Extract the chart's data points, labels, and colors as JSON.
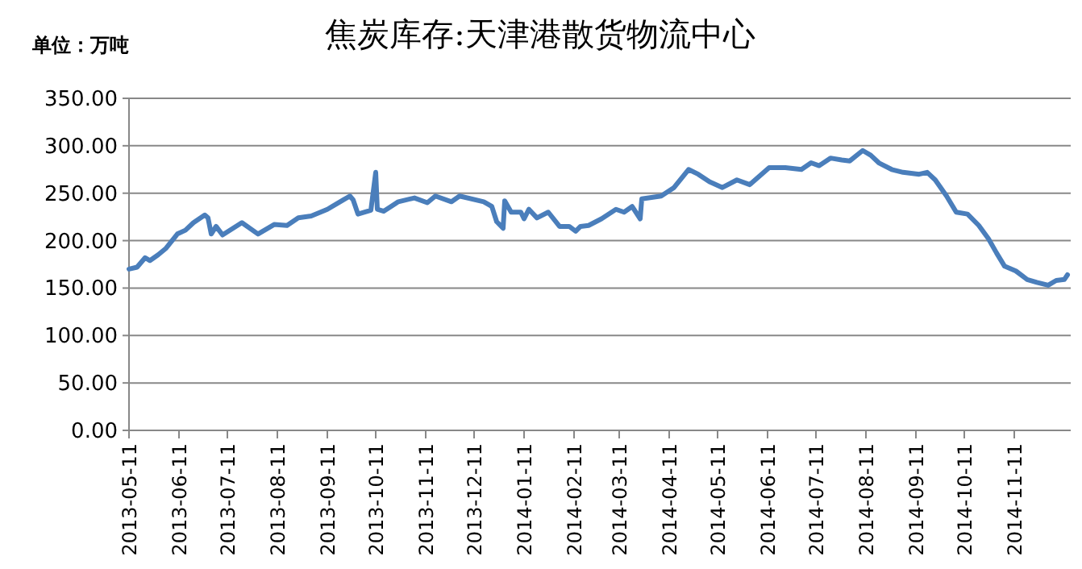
{
  "chart_data": {
    "type": "line",
    "title": "焦炭库存:天津港散货物流中心",
    "ylabel": "单位：万吨",
    "color": "#4a7ebb",
    "marker": "none",
    "grid": "y",
    "x": [
      "2013-05-11",
      "2013-05-16",
      "2013-05-21",
      "2013-05-24",
      "2013-05-29",
      "2013-06-03",
      "2013-06-10",
      "2013-06-15",
      "2013-06-20",
      "2013-06-27",
      "2013-06-29",
      "2013-07-01",
      "2013-07-04",
      "2013-07-08",
      "2013-07-20",
      "2013-07-30",
      "2013-08-09",
      "2013-08-17",
      "2013-08-24",
      "2013-09-01",
      "2013-09-11",
      "2013-09-21",
      "2013-09-25",
      "2013-09-27",
      "2013-09-30",
      "2013-10-08",
      "2013-10-11",
      "2013-10-12",
      "2013-10-16",
      "2013-10-25",
      "2013-11-04",
      "2013-11-12",
      "2013-11-17",
      "2013-11-27",
      "2013-12-02",
      "2013-12-17",
      "2013-12-22",
      "2013-12-25",
      "2013-12-29",
      "2013-12-30",
      "2014-01-03",
      "2014-01-09",
      "2014-01-11",
      "2014-01-14",
      "2014-01-19",
      "2014-01-26",
      "2014-02-02",
      "2014-02-08",
      "2014-02-12",
      "2014-02-15",
      "2014-02-20",
      "2014-02-28",
      "2014-03-09",
      "2014-03-14",
      "2014-03-19",
      "2014-03-24",
      "2014-03-25",
      "2014-04-06",
      "2014-04-14",
      "2014-04-23",
      "2014-04-29",
      "2014-05-06",
      "2014-05-14",
      "2014-05-23",
      "2014-05-31",
      "2014-06-12",
      "2014-06-22",
      "2014-07-02",
      "2014-07-08",
      "2014-07-13",
      "2014-07-20",
      "2014-07-27",
      "2014-08-01",
      "2014-08-09",
      "2014-08-14",
      "2014-08-19",
      "2014-08-27",
      "2014-09-03",
      "2014-09-13",
      "2014-09-18",
      "2014-09-23",
      "2014-09-30",
      "2014-10-06",
      "2014-10-13",
      "2014-10-20",
      "2014-10-26",
      "2014-10-31",
      "2014-11-05",
      "2014-11-12",
      "2014-11-19",
      "2014-11-25",
      "2014-12-02",
      "2014-12-07",
      "2014-12-12",
      "2014-12-14"
    ],
    "values": [
      170,
      172,
      182,
      179,
      185,
      192,
      207,
      211,
      219,
      227,
      224,
      207,
      215,
      206,
      219,
      207,
      217,
      216,
      224,
      226,
      233,
      243,
      247,
      243,
      228,
      232,
      272,
      233,
      231,
      241,
      245,
      240,
      247,
      241,
      247,
      241,
      236,
      220,
      213,
      242,
      230,
      230,
      223,
      233,
      224,
      230,
      215,
      215,
      210,
      215,
      216,
      223,
      233,
      230,
      236,
      223,
      244,
      247,
      256,
      275,
      270,
      262,
      256,
      264,
      259,
      277,
      277,
      275,
      282,
      279,
      287,
      285,
      284,
      295,
      290,
      282,
      275,
      272,
      270,
      272,
      264,
      247,
      230,
      228,
      216,
      202,
      187,
      173,
      168,
      159,
      156,
      153,
      158,
      159,
      164
    ],
    "xlim": [
      "2013-05-11",
      "2014-12-16"
    ],
    "xticks": [
      "2013-05-11",
      "2013-06-11",
      "2013-07-11",
      "2013-08-11",
      "2013-09-11",
      "2013-10-11",
      "2013-11-11",
      "2013-12-11",
      "2014-01-11",
      "2014-02-11",
      "2014-03-11",
      "2014-04-11",
      "2014-05-11",
      "2014-06-11",
      "2014-07-11",
      "2014-08-11",
      "2014-09-11",
      "2014-10-11",
      "2014-11-11"
    ],
    "ylim": [
      0,
      350
    ],
    "yticks": [
      {
        "value": 0,
        "label": "0.00"
      },
      {
        "value": 50,
        "label": "50.00"
      },
      {
        "value": 100,
        "label": "100.00"
      },
      {
        "value": 150,
        "label": "150.00"
      },
      {
        "value": 200,
        "label": "200.00"
      },
      {
        "value": 250,
        "label": "250.00"
      },
      {
        "value": 300,
        "label": "300.00"
      },
      {
        "value": 350,
        "label": "350.00"
      }
    ]
  }
}
